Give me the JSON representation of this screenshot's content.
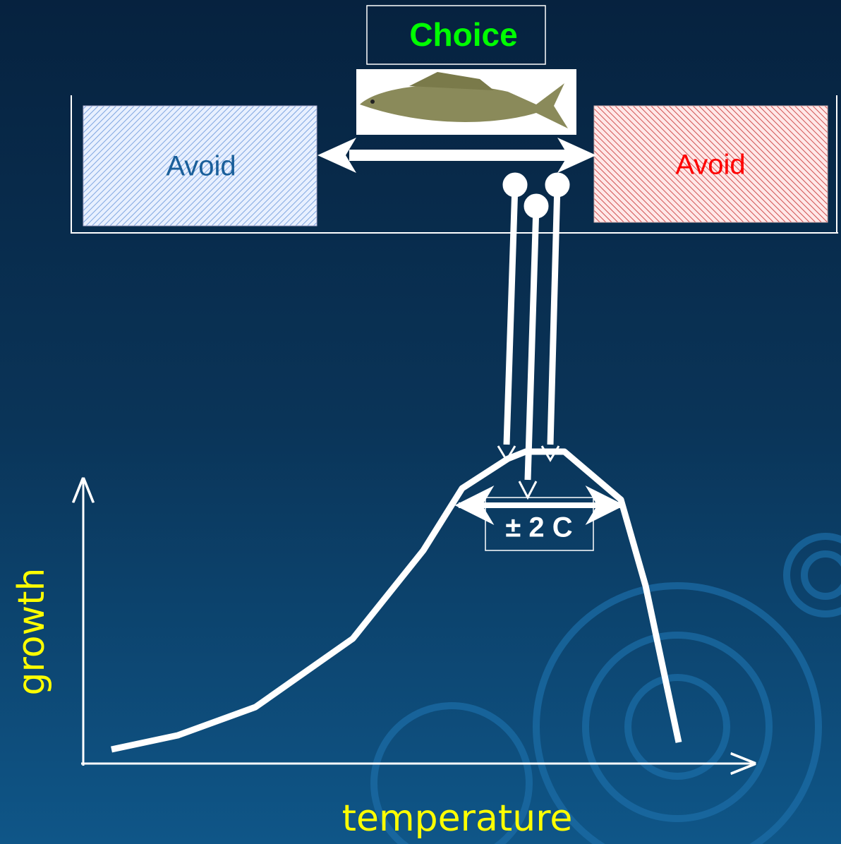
{
  "choice_label": "Choice",
  "zones": [
    {
      "label": "Avoid"
    },
    {
      "label": "Avoid"
    }
  ],
  "range_label": "± 2 C",
  "axes": {
    "y_label": "growth",
    "x_label": "temperature"
  }
}
